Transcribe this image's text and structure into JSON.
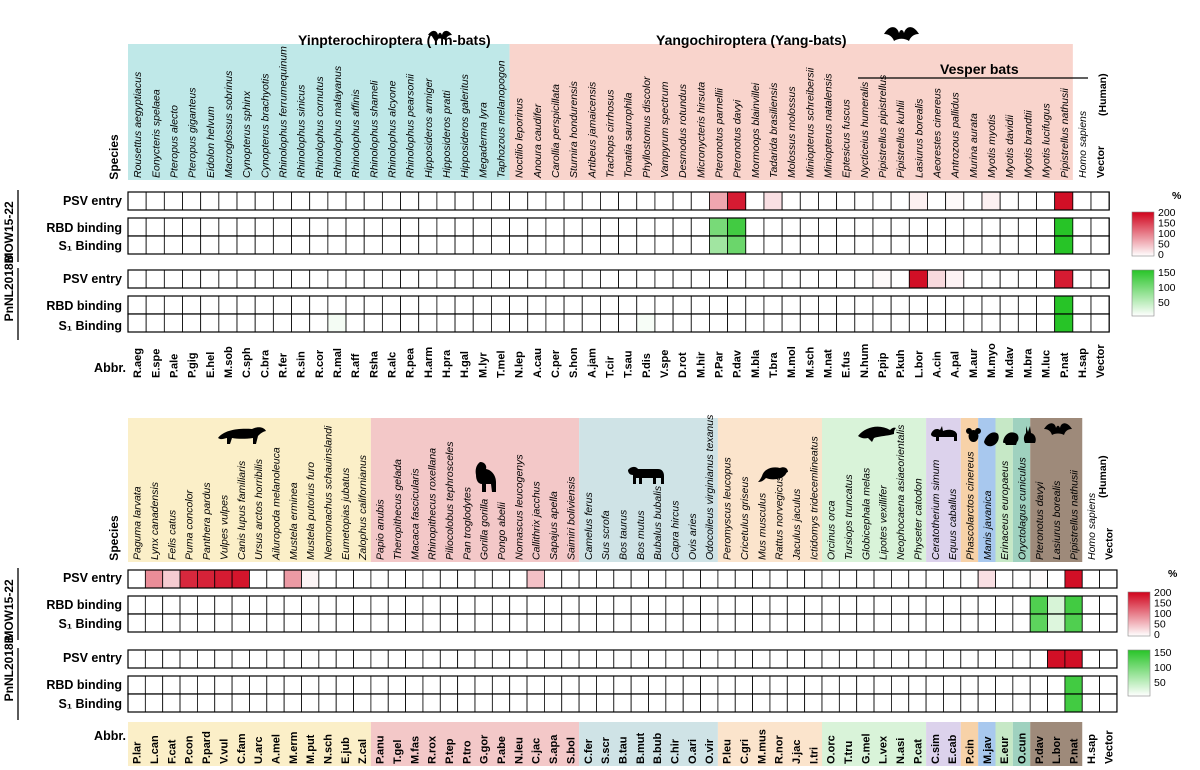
{
  "labels": {
    "species": "Species",
    "abbr": "Abbr.",
    "human_tag": "(Human)",
    "percent": "%",
    "rows": [
      "PSV entry",
      "RBD binding",
      "S₁ Binding"
    ],
    "virus1": "MOW15-22",
    "virus2": "PnNL2018B"
  },
  "legend": {
    "red_ticks": [
      "200",
      "150",
      "100",
      "50",
      "0"
    ],
    "green_ticks": [
      "150",
      "100",
      "50"
    ]
  },
  "colors": {
    "red_scale": "#d0021b",
    "green_scale": "#27c427",
    "cell_border": "#000000"
  },
  "panel1": {
    "group_titles": [
      "Yinpterochiroptera (Yin-bats)",
      "Yangochiroptera  (Yang-bats)"
    ],
    "subgroup_title": "Vesper bats",
    "group_colors": [
      "#bfe8e8",
      "#f9d4cc"
    ],
    "species": [
      "Rousettus aegyptiacus",
      "Eonycteris spelaea",
      "Pteropus alecto",
      "Pteropus giganteus",
      "Eidolon helvum",
      "Macroglossus sobrinus",
      "Cynopterus sphinx",
      "Cynopterus brachyotis",
      "Rhinolophus ferrumequinum",
      "Rhinolophus sinicus",
      "Rhinolophus cornutus",
      "Rhinolophus malayanus",
      "Rhinolophus affinis",
      "Rhinolophus shameli",
      "Rhinolophus alcyone",
      "Rhinolophus pearsonii",
      "Hipposideros armiger",
      "Hipposideros pratti",
      "Hipposideros galeritus",
      "Megaderma lyra",
      "Taphozous melanopogon",
      "Noctilio leporinus",
      "Anoura caudifer",
      "Carollia perspicillata",
      "Sturnira hondurensis",
      "Artibeus jamaicensis",
      "Trachops cirrhosus",
      "Tonatia saurophila",
      "Phyllostomus discolor",
      "Vampyrum spectrum",
      "Desmodus rotundus",
      "Micronycteris hirsuta",
      "Pteronotus parnellii",
      "Pteronotus davyi",
      "Mormoops blainvillei",
      "Tadarida brasiliensis",
      "Molossus molossus",
      "Miniopterus schreibersii",
      "Miniopterus natalensis",
      "Eptesicus fuscus",
      "Nycticeius humeralis",
      "Pipistrellus pipistrellus",
      "Pipistrellus kuhlii",
      "Lasiurus borealis",
      "Aeorestes cinereus",
      "Antrozous pallidus",
      "Murina aurata",
      "Myotis myotis",
      "Myotis davidii",
      "Myotis brandtii",
      "Myotis lucifugus",
      "Pipistrellus nathusii",
      "Homo sapiens",
      "Vector"
    ],
    "abbr": [
      "R.aeg",
      "E.spe",
      "P.ale",
      "P.gig",
      "E.hel",
      "M.sob",
      "C.sph",
      "C.bra",
      "R.fer",
      "R.sin",
      "R.cor",
      "R.mal",
      "R.aff",
      "Rsha",
      "R.alc",
      "R.pea",
      "H.arm",
      "H.pra",
      "H.gal",
      "M.lyr",
      "T.mel",
      "N.lep",
      "A.cau",
      "C.per",
      "S.hon",
      "A.jam",
      "T.cir",
      "T.sau",
      "P.dis",
      "V.spe",
      "D.rot",
      "M.hir",
      "P.Par",
      "P.dav",
      "M.bla",
      "T.bra",
      "M.mol",
      "M.sch",
      "M.nat",
      "E.fus",
      "N.hum",
      "P.pip",
      "P.kuh",
      "L.bor",
      "A.cin",
      "A.pal",
      "M.aur",
      "M.myo",
      "M.dav",
      "M.bra",
      "M.luc",
      "P.nat",
      "H.sap",
      "Vector"
    ],
    "mow_psv": {
      "32": 70,
      "33": 180,
      "35": 25,
      "43": 12,
      "45": 4,
      "47": 12,
      "51": 190
    },
    "mow_rbd": {
      "32": 100,
      "33": 140,
      "51": 160
    },
    "mow_s1": {
      "32": 70,
      "33": 110,
      "51": 160
    },
    "pnl_psv": {
      "41": 4,
      "43": 190,
      "44": 30,
      "45": 10,
      "51": 180
    },
    "pnl_rbd": {
      "51": 160
    },
    "pnl_s1": {
      "11": 8,
      "28": 6,
      "51": 160
    }
  },
  "panel2": {
    "species": [
      "Paguma larvata",
      "Lynx canadensis",
      "Felis catus",
      "Puma concolor",
      "Panthera pardus",
      "Vulpes vulpes",
      "Canis lupus familiaris",
      "Ursus arctos horribilis",
      "Ailuropoda melanoleuca",
      "Mustela erminea",
      "Mustela putorius furo",
      "Neomonachus schauinslandi",
      "Eumetopias jubatus",
      "Zalophus californianus",
      "Papio anubis",
      "Theropithecus gelada",
      "Macaca fascicularis",
      "Rhinopithecus roxellana",
      "Piliocolobus tephrosceles",
      "Pan troglodytes",
      "Gorilla gorilla",
      "Pongo abelii",
      "Nomascus leucogenys",
      "Callithrix jacchus",
      "Sapajus apella",
      "Saimiri boliviensis",
      "Camelus ferus",
      "Sus scrofa",
      "Bos taurus",
      "Bos mutus",
      "Bubalus bubalis",
      "Capra hircus",
      "Ovis aries",
      "Odocoileus virginianus texanus",
      "Peromyscus leucopus",
      "Cricetulus griseus",
      "Mus musculus",
      "Rattus norvegicus",
      "Jaculus jaculus",
      "Ictidomys tridecemlineatus",
      "Orcinus orca",
      "Tursiops truncatus",
      "Globicephala melas",
      "Lipotes vexillifer",
      "Neophocaena asiaeorientalis",
      "Physeter catodon",
      "Ceratotherium simum",
      "Equus caballus",
      "Phascolarctos cinereus",
      "Manis javanica",
      "Erinaceus europaeus",
      "Oryctolagus cuniculus",
      "Pteronotus davyi",
      "Lasiurus borealis",
      "Pipistrellus nathusii",
      "Homo sapiens",
      "Vector"
    ],
    "abbr": [
      "P.lar",
      "L.can",
      "F.cat",
      "P.con",
      "P.pard",
      "V.vul",
      "C.fam",
      "U.arc",
      "A.mel",
      "M.erm",
      "M.put",
      "N.sch",
      "E.jub",
      "Z.cal",
      "P.anu",
      "T.gel",
      "M.fas",
      "R.rox",
      "P.tep",
      "P.tro",
      "G.gor",
      "P.abe",
      "N.leu",
      "C.jac",
      "S.apa",
      "S.bol",
      "C.fer",
      "S.scr",
      "B.tau",
      "B.mut",
      "B.bub",
      "C.hir",
      "O.ari",
      "O.vir",
      "P.leu",
      "C.gri",
      "M.mus",
      "R.nor",
      "J.jac",
      "I.tri",
      "O.orc",
      "T.tru",
      "G.mel",
      "L.vex",
      "N.asi",
      "P.cat",
      "C.sim",
      "E.cab",
      "P.cin",
      "M.jav",
      "E.eur",
      "O.cun",
      "P.dav",
      "L.bor",
      "P.nat",
      "H.sap",
      "Vector"
    ],
    "group_colors": [
      "#fbefc8",
      "#f3c8c8",
      "#cfe3e6",
      "#fbe4cc",
      "#d9f3d9",
      "#dcd2ec",
      "#f7d2a8",
      "#a8c8ee",
      "#c6e8c6",
      "#9fd1bf",
      "#9e8a7a"
    ],
    "mow_psv": {
      "1": 90,
      "2": 40,
      "3": 170,
      "4": 175,
      "5": 180,
      "6": 185,
      "9": 80,
      "10": 8,
      "23": 50,
      "49": 25,
      "52": 4,
      "54": 190
    },
    "mow_rbd": {
      "52": 130,
      "53": 30,
      "54": 140
    },
    "mow_s1": {
      "52": 120,
      "53": 25,
      "54": 130
    },
    "pnl_psv": {
      "53": 190,
      "54": 190
    },
    "pnl_rbd": {
      "54": 140
    },
    "pnl_s1": {
      "54": 140
    }
  }
}
